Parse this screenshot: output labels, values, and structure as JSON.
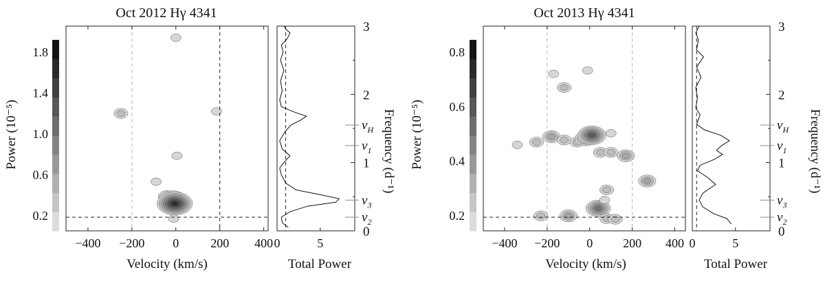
{
  "chart_data": [
    {
      "type": "heatmap",
      "title": "Oct 2012 Hγ 4341",
      "xlabel": "Velocity (km/s)",
      "ylabel_left": "Power (10⁻⁵)",
      "ylabel_right": "Frequency (d⁻¹)",
      "xlim": [
        -500,
        420
      ],
      "ylim": [
        0,
        3
      ],
      "x_ticks": [
        -400,
        -200,
        0,
        200,
        400
      ],
      "freq_ticks": [
        0,
        1,
        2,
        3
      ],
      "colorbar": {
        "ticks": [
          "0.2",
          "0.6",
          "1.0",
          "1.4",
          "1.8"
        ],
        "levels": [
          0.2,
          0.4,
          0.6,
          0.8,
          1.0,
          1.2,
          1.4,
          1.6,
          1.8,
          2.0
        ]
      },
      "vlines_dashed_gray": [
        -200
      ],
      "vlines_dashed_black": [
        200
      ],
      "hline_dashed_black": 0.2,
      "freq_marks": [
        {
          "label": "νH",
          "freq": 1.55
        },
        {
          "label": "ν1",
          "freq": 1.25
        },
        {
          "label": "ν3",
          "freq": 0.45
        },
        {
          "label": "ν2",
          "freq": 0.2
        }
      ],
      "blobs": [
        {
          "v": 0,
          "f": 2.83,
          "level": 1
        },
        {
          "v": -250,
          "f": 1.72,
          "level": 2
        },
        {
          "v": 185,
          "f": 1.75,
          "level": 1
        },
        {
          "v": 5,
          "f": 1.1,
          "level": 1
        },
        {
          "v": -90,
          "f": 0.72,
          "level": 1
        },
        {
          "v": -40,
          "f": 0.5,
          "level": 3
        },
        {
          "v": -15,
          "f": 0.45,
          "level": 6
        },
        {
          "v": -5,
          "f": 0.4,
          "level": 8
        },
        {
          "v": -10,
          "f": 0.18,
          "level": 1
        }
      ],
      "total_power": {
        "xlabel": "Total Power",
        "xlim": [
          0,
          9
        ],
        "x_ticks": [
          0,
          5
        ],
        "dashed_level": 1.0,
        "curve": [
          {
            "f": 0.05,
            "p": 1.3
          },
          {
            "f": 0.12,
            "p": 0.6
          },
          {
            "f": 0.2,
            "p": 0.5
          },
          {
            "f": 0.28,
            "p": 1.5
          },
          {
            "f": 0.36,
            "p": 3.5
          },
          {
            "f": 0.42,
            "p": 6.8
          },
          {
            "f": 0.47,
            "p": 7.2
          },
          {
            "f": 0.53,
            "p": 5.0
          },
          {
            "f": 0.6,
            "p": 2.2
          },
          {
            "f": 0.7,
            "p": 1.0
          },
          {
            "f": 0.82,
            "p": 0.5
          },
          {
            "f": 0.92,
            "p": 0.3
          },
          {
            "f": 1.0,
            "p": 0.8
          },
          {
            "f": 1.1,
            "p": 1.5
          },
          {
            "f": 1.2,
            "p": 0.6
          },
          {
            "f": 1.32,
            "p": 0.3
          },
          {
            "f": 1.45,
            "p": 0.9
          },
          {
            "f": 1.55,
            "p": 1.6
          },
          {
            "f": 1.62,
            "p": 2.7
          },
          {
            "f": 1.68,
            "p": 3.4
          },
          {
            "f": 1.74,
            "p": 2.0
          },
          {
            "f": 1.82,
            "p": 0.5
          },
          {
            "f": 1.92,
            "p": 0.3
          },
          {
            "f": 2.05,
            "p": 0.6
          },
          {
            "f": 2.2,
            "p": 0.4
          },
          {
            "f": 2.35,
            "p": 0.8
          },
          {
            "f": 2.5,
            "p": 0.4
          },
          {
            "f": 2.62,
            "p": 0.7
          },
          {
            "f": 2.72,
            "p": 0.5
          },
          {
            "f": 2.82,
            "p": 1.2
          },
          {
            "f": 2.9,
            "p": 1.5
          },
          {
            "f": 2.96,
            "p": 1.0
          },
          {
            "f": 3.0,
            "p": 0.8
          }
        ]
      }
    },
    {
      "type": "heatmap",
      "title": "Oct 2013 Hγ 4341",
      "xlabel": "Velocity (km/s)",
      "ylabel_left": "Power (10⁻⁵)",
      "ylabel_right": "Frequency (d⁻¹)",
      "xlim": [
        -500,
        450
      ],
      "ylim": [
        0,
        3
      ],
      "x_ticks": [
        -400,
        -200,
        0,
        200,
        400
      ],
      "freq_ticks": [
        0,
        1,
        2,
        3
      ],
      "colorbar": {
        "ticks": [
          "0.2",
          "0.4",
          "0.6",
          "0.8"
        ],
        "levels": [
          0.1,
          0.2,
          0.3,
          0.4,
          0.5,
          0.6,
          0.7,
          0.8,
          0.9,
          1.0
        ]
      },
      "vlines_dashed_gray": [
        -200,
        200
      ],
      "vlines_dashed_black": [],
      "hline_dashed_black": 0.2,
      "freq_marks": [
        {
          "label": "νH",
          "freq": 1.55
        },
        {
          "label": "ν1",
          "freq": 1.25
        },
        {
          "label": "ν3",
          "freq": 0.45
        },
        {
          "label": "ν2",
          "freq": 0.2
        }
      ],
      "blobs": [
        {
          "v": -10,
          "f": 2.35,
          "level": 1
        },
        {
          "v": -120,
          "f": 2.1,
          "level": 2
        },
        {
          "v": -170,
          "f": 2.3,
          "level": 1
        },
        {
          "v": -340,
          "f": 1.26,
          "level": 1
        },
        {
          "v": -250,
          "f": 1.3,
          "level": 2
        },
        {
          "v": -180,
          "f": 1.38,
          "level": 3
        },
        {
          "v": -120,
          "f": 1.33,
          "level": 2
        },
        {
          "v": -60,
          "f": 1.3,
          "level": 2
        },
        {
          "v": -20,
          "f": 1.35,
          "level": 4
        },
        {
          "v": 10,
          "f": 1.4,
          "level": 6
        },
        {
          "v": 50,
          "f": 1.15,
          "level": 2
        },
        {
          "v": 100,
          "f": 1.15,
          "level": 2
        },
        {
          "v": 170,
          "f": 1.1,
          "level": 3
        },
        {
          "v": 100,
          "f": 1.43,
          "level": 1
        },
        {
          "v": 270,
          "f": 0.73,
          "level": 3
        },
        {
          "v": 80,
          "f": 0.6,
          "level": 2
        },
        {
          "v": -230,
          "f": 0.22,
          "level": 2
        },
        {
          "v": -100,
          "f": 0.22,
          "level": 3
        },
        {
          "v": 40,
          "f": 0.33,
          "level": 5
        },
        {
          "v": 80,
          "f": 0.18,
          "level": 2
        },
        {
          "v": 120,
          "f": 0.17,
          "level": 2
        },
        {
          "v": 70,
          "f": 0.45,
          "level": 1
        }
      ],
      "total_power": {
        "xlabel": "Total Power",
        "xlim": [
          0,
          9
        ],
        "x_ticks": [
          0,
          5
        ],
        "dashed_level": 0.5,
        "curve": [
          {
            "f": 0.1,
            "p": 4.5
          },
          {
            "f": 0.18,
            "p": 4.0
          },
          {
            "f": 0.25,
            "p": 2.5
          },
          {
            "f": 0.35,
            "p": 1.2
          },
          {
            "f": 0.45,
            "p": 0.8
          },
          {
            "f": 0.55,
            "p": 1.2
          },
          {
            "f": 0.68,
            "p": 2.7
          },
          {
            "f": 0.78,
            "p": 1.8
          },
          {
            "f": 0.88,
            "p": 0.6
          },
          {
            "f": 0.96,
            "p": 0.9
          },
          {
            "f": 1.05,
            "p": 2.6
          },
          {
            "f": 1.12,
            "p": 3.5
          },
          {
            "f": 1.18,
            "p": 2.8
          },
          {
            "f": 1.25,
            "p": 3.4
          },
          {
            "f": 1.32,
            "p": 4.3
          },
          {
            "f": 1.4,
            "p": 3.3
          },
          {
            "f": 1.48,
            "p": 1.4
          },
          {
            "f": 1.56,
            "p": 0.5
          },
          {
            "f": 1.7,
            "p": 0.9
          },
          {
            "f": 1.8,
            "p": 0.4
          },
          {
            "f": 1.95,
            "p": 0.6
          },
          {
            "f": 2.1,
            "p": 0.4
          },
          {
            "f": 2.25,
            "p": 1.0
          },
          {
            "f": 2.4,
            "p": 0.5
          },
          {
            "f": 2.55,
            "p": 1.3
          },
          {
            "f": 2.65,
            "p": 0.5
          },
          {
            "f": 2.8,
            "p": 0.7
          },
          {
            "f": 2.9,
            "p": 0.4
          },
          {
            "f": 3.0,
            "p": 0.8
          }
        ]
      }
    }
  ]
}
